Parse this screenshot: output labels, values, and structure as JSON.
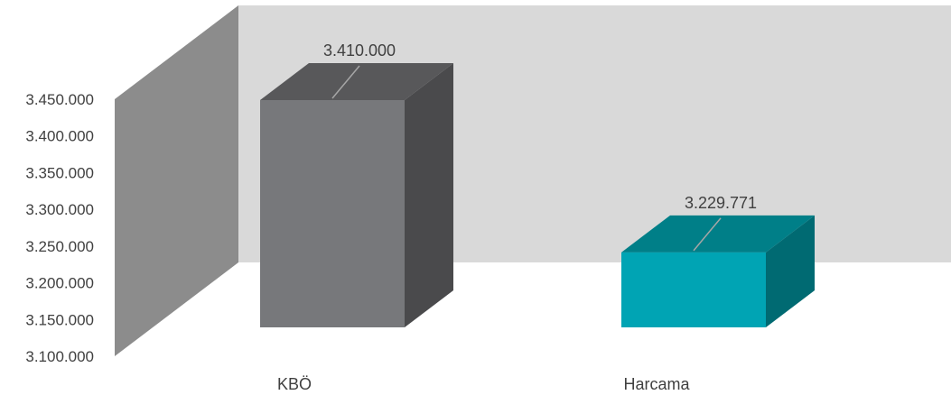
{
  "chart_data": {
    "type": "bar",
    "categories": [
      "KBÖ",
      "Harcama"
    ],
    "values": [
      3410000,
      3229771
    ],
    "data_labels": [
      "3.410.000",
      "3.229.771"
    ],
    "ylim": [
      3100000,
      3450000
    ],
    "y_ticks": [
      3100000,
      3150000,
      3200000,
      3250000,
      3300000,
      3350000,
      3400000,
      3450000
    ],
    "y_tick_labels": [
      "3.100.000",
      "3.150.000",
      "3.200.000",
      "3.250.000",
      "3.300.000",
      "3.350.000",
      "3.400.000",
      "3.450.000"
    ],
    "grid": false,
    "legend": "none",
    "style": "3d",
    "colors": {
      "bar_1": "#77787b",
      "bar_1_top": "#58585a",
      "bar_1_side": "#4a4a4c",
      "bar_2": "#00a4b4",
      "bar_2_top": "#007f88",
      "bar_2_side": "#006a72",
      "back_wall": "#d9d9d9",
      "side_wall": "#8c8c8c"
    }
  }
}
